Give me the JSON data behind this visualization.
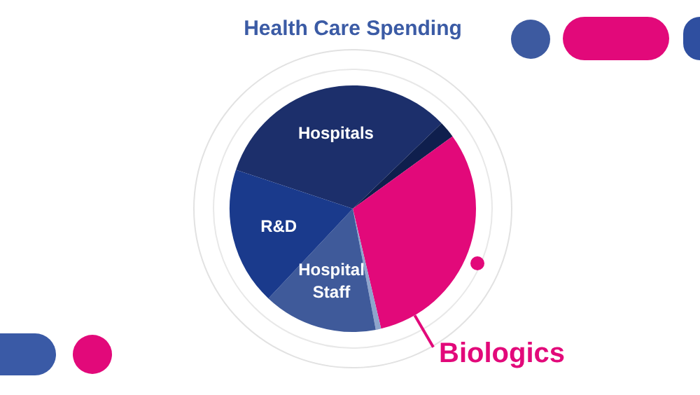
{
  "chart_data": {
    "type": "pie",
    "title": "Health Care Spending",
    "categories": [
      "Hospitals",
      null,
      "Biologics",
      null,
      "Hospital Staff",
      "R&D"
    ],
    "values": [
      32.7,
      2.2,
      31.3,
      0.7,
      15,
      18.1
    ],
    "colors": [
      "#1c2f6b",
      "#0f1f4d",
      "#e2097a",
      "#8ea4cc",
      "#3f5a9a",
      "#1a3a8c"
    ],
    "legend": false
  }
}
